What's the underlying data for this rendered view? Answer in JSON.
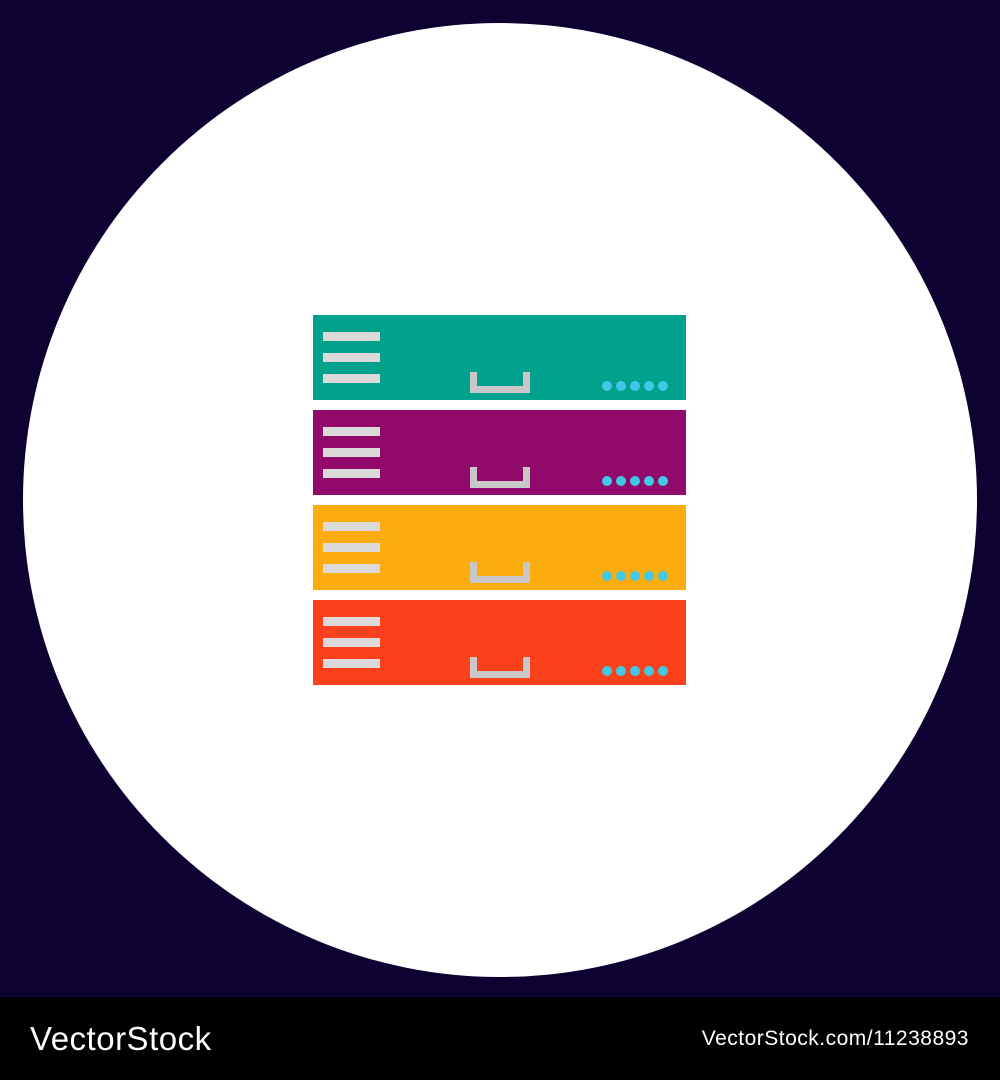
{
  "page": {
    "background_color": "#0D0231"
  },
  "icon": {
    "name": "server-rack-icon",
    "circle_color": "#FFFFFF",
    "line_color": "#DBD9D9",
    "bracket_color": "#C9C7C7",
    "dot_color": "#41C8E5",
    "lines_per_bar": 3,
    "dots_per_bar": 5,
    "bars": [
      {
        "name": "teal-server-bar",
        "color": "#00A18D"
      },
      {
        "name": "purple-server-bar",
        "color": "#91096A"
      },
      {
        "name": "orange-server-bar",
        "color": "#FCAD0D"
      },
      {
        "name": "red-server-bar",
        "color": "#FA411C"
      }
    ]
  },
  "watermark": {
    "band_color": "#000000",
    "text_color": "#FFFFFF",
    "brand": "VectorStock",
    "url_text": "VectorStock.com/11238893"
  }
}
